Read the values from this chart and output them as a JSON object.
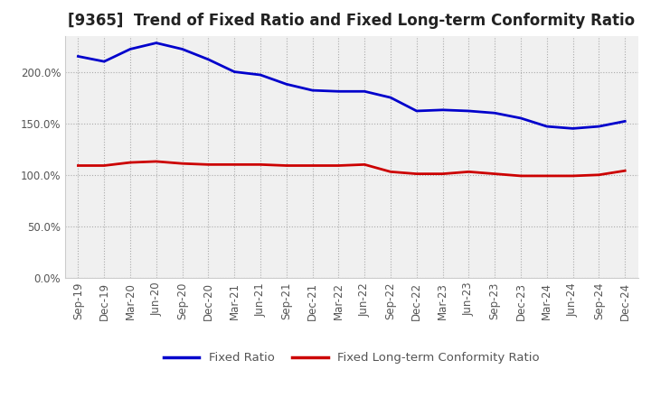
{
  "title": "[9365]  Trend of Fixed Ratio and Fixed Long-term Conformity Ratio",
  "x_labels": [
    "Sep-19",
    "Dec-19",
    "Mar-20",
    "Jun-20",
    "Sep-20",
    "Dec-20",
    "Mar-21",
    "Jun-21",
    "Sep-21",
    "Dec-21",
    "Mar-22",
    "Jun-22",
    "Sep-22",
    "Dec-22",
    "Mar-23",
    "Jun-23",
    "Sep-23",
    "Dec-23",
    "Mar-24",
    "Jun-24",
    "Sep-24",
    "Dec-24"
  ],
  "fixed_ratio": [
    215,
    210,
    222,
    228,
    222,
    212,
    200,
    197,
    188,
    182,
    181,
    181,
    175,
    162,
    163,
    162,
    160,
    155,
    147,
    145,
    147,
    152
  ],
  "fixed_lt_ratio": [
    109,
    109,
    112,
    113,
    111,
    110,
    110,
    110,
    109,
    109,
    109,
    110,
    103,
    101,
    101,
    103,
    101,
    99,
    99,
    99,
    100,
    104
  ],
  "ylim": [
    0,
    235
  ],
  "yticks": [
    0,
    50,
    100,
    150,
    200
  ],
  "ytick_labels": [
    "0.0%",
    "50.0%",
    "100.0%",
    "150.0%",
    "200.0%"
  ],
  "blue_color": "#0000cc",
  "red_color": "#cc0000",
  "bg_color": "#ffffff",
  "plot_bg_color": "#f0f0f0",
  "grid_color": "#999999",
  "legend_fixed_ratio": "Fixed Ratio",
  "legend_fixed_lt_ratio": "Fixed Long-term Conformity Ratio",
  "title_fontsize": 12,
  "label_fontsize": 8.5,
  "legend_fontsize": 9.5,
  "tick_color": "#555555"
}
